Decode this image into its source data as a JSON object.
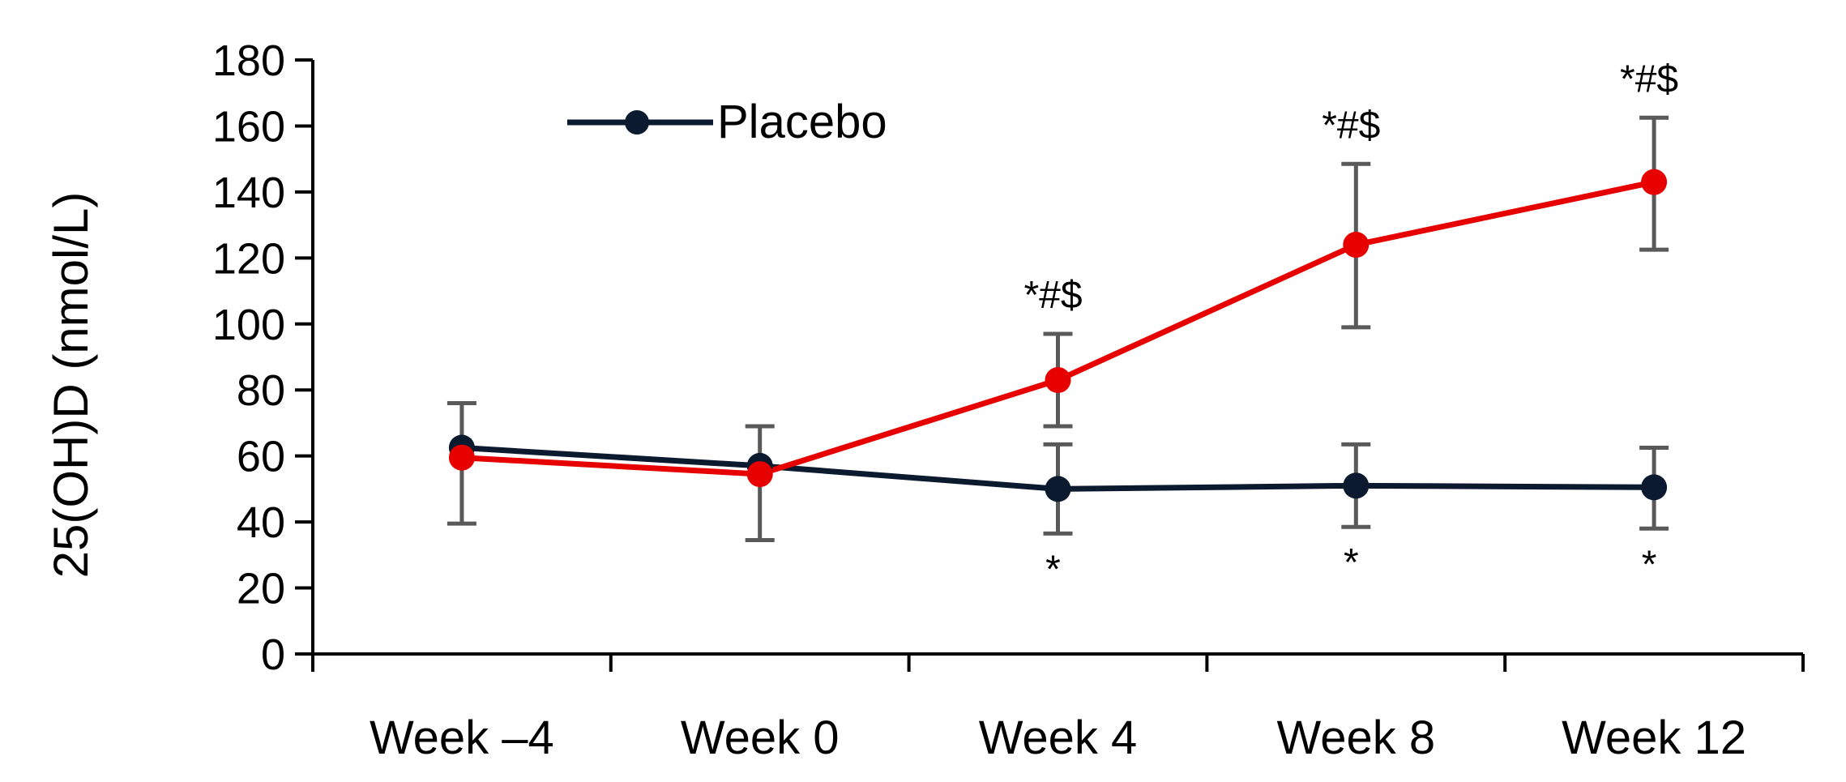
{
  "chart_data": {
    "type": "line",
    "title": "",
    "xlabel": "",
    "ylabel": "25(OH)D (nmol/L)",
    "ylim": [
      0,
      180
    ],
    "yticks": [
      0,
      20,
      40,
      60,
      80,
      100,
      120,
      140,
      160,
      180
    ],
    "categories": [
      "Week –4",
      "Week 0",
      "Week 4",
      "Week 8",
      "Week 12"
    ],
    "series": [
      {
        "name": "Placebo",
        "color": "#0b1a2e",
        "values": [
          62.5,
          57,
          50,
          51,
          50.5
        ],
        "error": [
          [
            39.5,
            76
          ],
          [
            34.5,
            69
          ],
          [
            36.5,
            63.5
          ],
          [
            38.5,
            63.5
          ],
          [
            38,
            62.5
          ]
        ],
        "annotations": [
          "",
          "",
          "*",
          "*",
          "*"
        ]
      },
      {
        "name": "",
        "color": "#e60000",
        "values": [
          59.5,
          54.5,
          83,
          124,
          143
        ],
        "error": [
          [],
          [],
          [
            69,
            97
          ],
          [
            99,
            148.5
          ],
          [
            122.5,
            162.5
          ]
        ],
        "annotations": [
          "",
          "",
          "*#$",
          "*#$",
          "*#$"
        ]
      }
    ],
    "legend": {
      "position": "top-left",
      "entries": [
        "Placebo"
      ]
    },
    "grid": false
  }
}
